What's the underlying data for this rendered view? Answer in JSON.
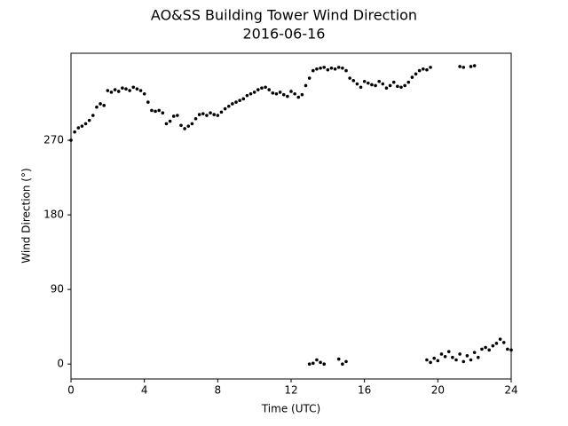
{
  "chart_data": {
    "type": "scatter",
    "title": "AO&SS Building Tower Wind Direction",
    "subtitle": "2016-06-16",
    "x_label": "Time (UTC)",
    "y_label": "Wind Direction (°)",
    "xlim": [
      0,
      24
    ],
    "xticks": [
      0,
      4,
      8,
      12,
      16,
      20,
      24
    ],
    "ylim": [
      -18,
      375
    ],
    "yticks": [
      0,
      90,
      180,
      270
    ],
    "series": [
      {
        "color": "#000000",
        "x": [
          0,
          0.2,
          0.4,
          0.6,
          0.8,
          1.0,
          1.2,
          1.4,
          1.6,
          1.8,
          2.0,
          2.2,
          2.4,
          2.6,
          2.8,
          3.0,
          3.2,
          3.4,
          3.6,
          3.8,
          4.0,
          4.2,
          4.4,
          4.6,
          4.8,
          5.0,
          5.2,
          5.4,
          5.6,
          5.8,
          6.0,
          6.2,
          6.4,
          6.6,
          6.8,
          7.0,
          7.2,
          7.4,
          7.6,
          7.8,
          8.0,
          8.2,
          8.4,
          8.6,
          8.8,
          9.0,
          9.2,
          9.4,
          9.6,
          9.8,
          10.0,
          10.2,
          10.4,
          10.6,
          10.8,
          11.0,
          11.2,
          11.4,
          11.6,
          11.8,
          12.0,
          12.2,
          12.4,
          12.6,
          12.8,
          13.0,
          13.2,
          13.4,
          13.6,
          13.8,
          14.0,
          14.2,
          14.4,
          14.6,
          14.8,
          15.0,
          15.2,
          15.4,
          15.6,
          15.8,
          16.0,
          16.2,
          16.4,
          16.6,
          16.8,
          17.0,
          17.2,
          17.4,
          17.6,
          17.8,
          18.0,
          18.2,
          18.4,
          18.6,
          18.8,
          19.0,
          19.2,
          19.4,
          19.6,
          21.2,
          21.4,
          21.8,
          22.0,
          13.0,
          13.2,
          13.4,
          13.6,
          13.8,
          14.6,
          14.8,
          15.0,
          19.4,
          19.6,
          19.8,
          20.0,
          20.2,
          20.4,
          20.6,
          20.8,
          21.0,
          21.2,
          21.4,
          21.6,
          21.8,
          22.0,
          22.2,
          22.4,
          22.6,
          22.8,
          23.0,
          23.2,
          23.4,
          23.6,
          23.8,
          24.0
        ],
        "values": [
          270,
          280,
          285,
          287,
          290,
          294,
          300,
          310,
          314,
          312,
          330,
          328,
          331,
          329,
          333,
          332,
          330,
          334,
          332,
          330,
          326,
          316,
          306,
          305,
          306,
          303,
          290,
          293,
          299,
          300,
          288,
          284,
          287,
          290,
          296,
          301,
          302,
          300,
          303,
          301,
          300,
          304,
          308,
          311,
          314,
          316,
          318,
          320,
          324,
          326,
          328,
          331,
          333,
          334,
          331,
          327,
          326,
          328,
          325,
          323,
          329,
          326,
          322,
          325,
          336,
          345,
          354,
          356,
          357,
          358,
          355,
          357,
          356,
          358,
          357,
          354,
          345,
          342,
          338,
          334,
          341,
          339,
          337,
          336,
          341,
          338,
          333,
          336,
          340,
          335,
          334,
          336,
          340,
          346,
          350,
          354,
          356,
          355,
          358,
          359,
          358,
          359,
          360,
          0,
          1,
          5,
          2,
          0,
          6,
          0,
          3,
          5,
          2,
          7,
          4,
          12,
          9,
          15,
          8,
          5,
          12,
          3,
          10,
          5,
          14,
          8,
          18,
          20,
          17,
          22,
          25,
          30,
          26,
          18,
          17
        ]
      }
    ]
  }
}
